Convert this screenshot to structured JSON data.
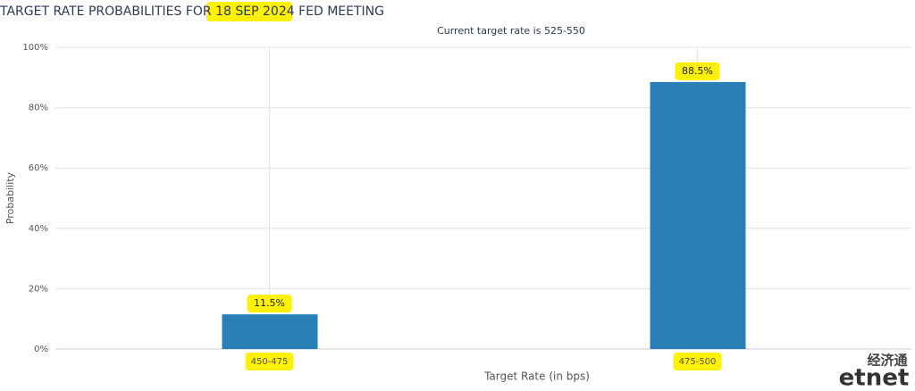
{
  "chart_data": {
    "type": "bar",
    "title": "TARGET RATE PROBABILITIES FOR 18 SEP 2024 FED MEETING",
    "subtitle": "Current target rate is 525-550",
    "y_label": "Probability",
    "x_label": "Target Rate (in bps)",
    "categories": [
      "450-475",
      "475-500"
    ],
    "values": [
      11.5,
      88.5
    ],
    "value_labels": [
      "11.5%",
      "88.5%"
    ],
    "color": "#2a7fb8",
    "ylim": [
      0,
      100
    ],
    "yticks": [
      {
        "value": 0,
        "label": "0%"
      },
      {
        "value": 20,
        "label": "20%"
      },
      {
        "value": 40,
        "label": "40%"
      },
      {
        "value": 60,
        "label": "60%"
      },
      {
        "value": 80,
        "label": "80%"
      },
      {
        "value": 100,
        "label": "100%"
      }
    ],
    "grid": true,
    "watermark": [
      "经济通",
      "etnet"
    ]
  }
}
